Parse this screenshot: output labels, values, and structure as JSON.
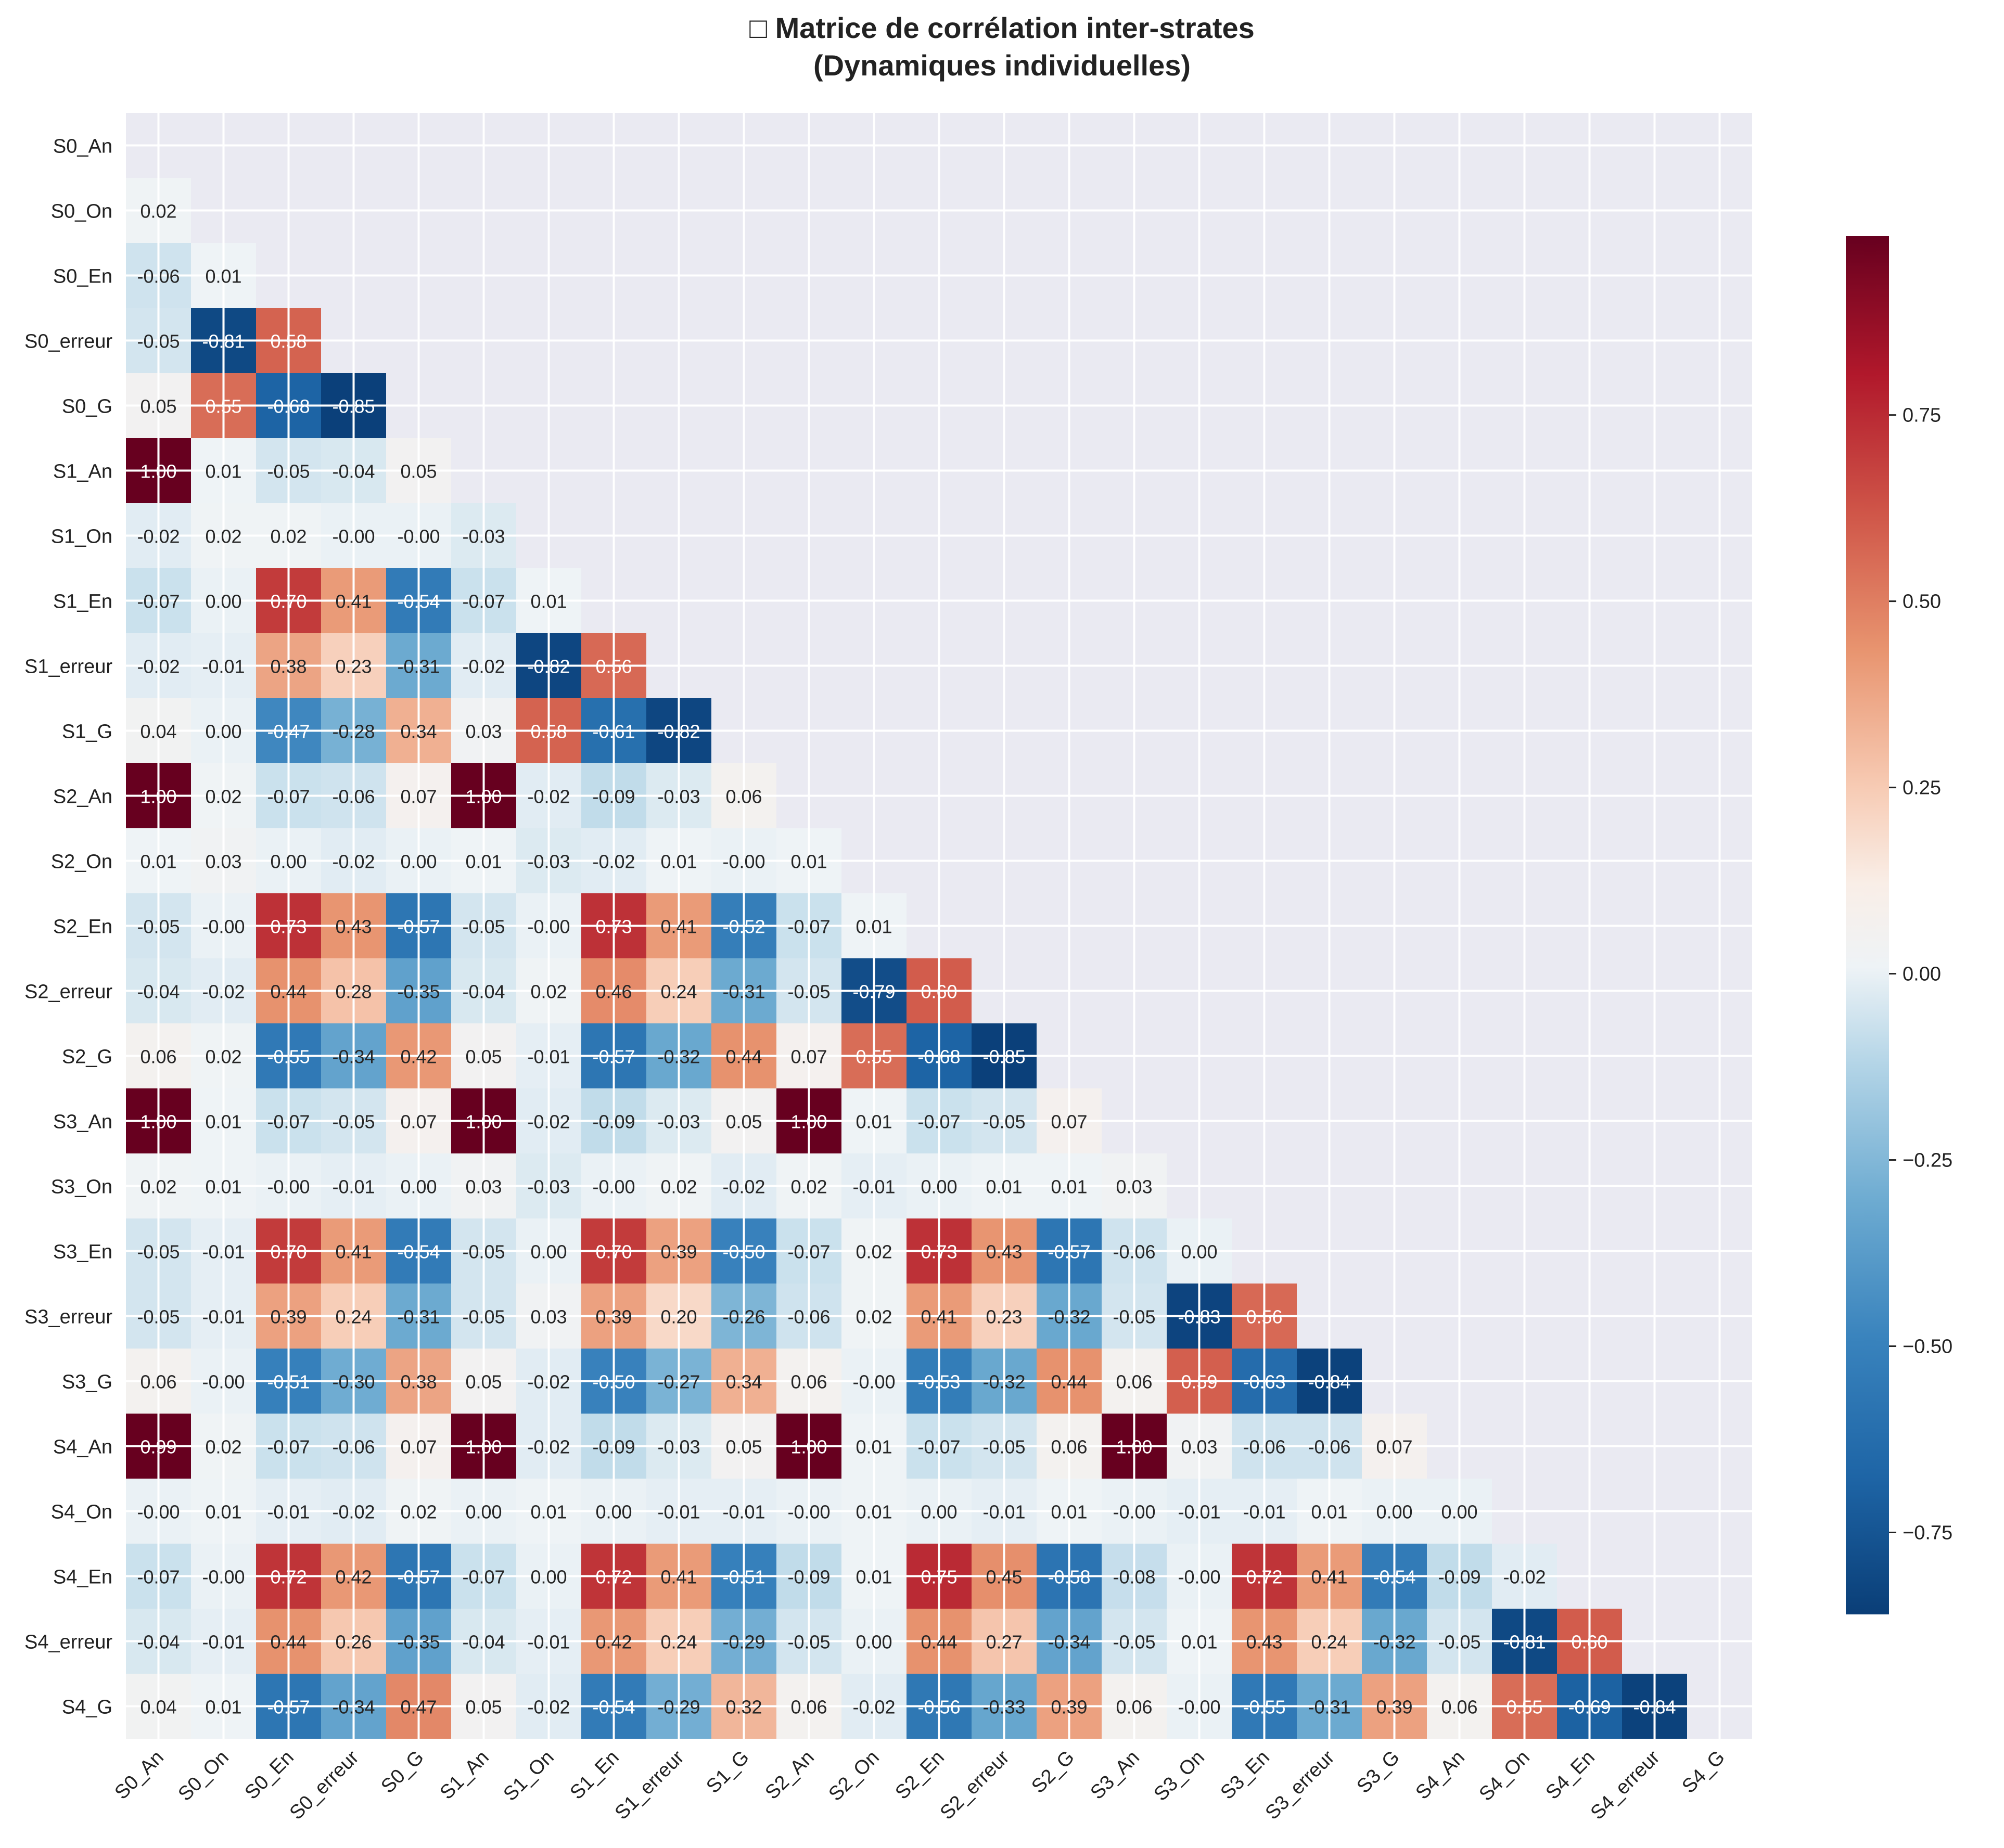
{
  "chart_data": {
    "type": "heatmap",
    "title": "Matrice de corrélation inter-strates",
    "subtitle": "(Dynamiques individuelles)",
    "title_icon": "missing-glyph-box",
    "labels": [
      "S0_An",
      "S0_On",
      "S0_En",
      "S0_erreur",
      "S0_G",
      "S1_An",
      "S1_On",
      "S1_En",
      "S1_erreur",
      "S1_G",
      "S2_An",
      "S2_On",
      "S2_En",
      "S2_erreur",
      "S2_G",
      "S3_An",
      "S3_On",
      "S3_En",
      "S3_erreur",
      "S3_G",
      "S4_An",
      "S4_On",
      "S4_En",
      "S4_erreur",
      "S4_G"
    ],
    "mask": "upper-triangle-and-diagonal",
    "rows": [
      [],
      [
        "0.02"
      ],
      [
        "-0.06",
        "0.01"
      ],
      [
        "-0.05",
        "-0.81",
        "0.58"
      ],
      [
        "0.05",
        "0.55",
        "-0.68",
        "-0.85"
      ],
      [
        "1.00",
        "0.01",
        "-0.05",
        "-0.04",
        "0.05"
      ],
      [
        "-0.02",
        "0.02",
        "0.02",
        "-0.00",
        "-0.00",
        "-0.03"
      ],
      [
        "-0.07",
        "0.00",
        "0.70",
        "0.41",
        "-0.54",
        "-0.07",
        "0.01"
      ],
      [
        "-0.02",
        "-0.01",
        "0.38",
        "0.23",
        "-0.31",
        "-0.02",
        "-0.82",
        "0.56"
      ],
      [
        "0.04",
        "0.00",
        "-0.47",
        "-0.28",
        "0.34",
        "0.03",
        "0.58",
        "-0.61",
        "-0.82"
      ],
      [
        "1.00",
        "0.02",
        "-0.07",
        "-0.06",
        "0.07",
        "1.00",
        "-0.02",
        "-0.09",
        "-0.03",
        "0.06"
      ],
      [
        "0.01",
        "0.03",
        "0.00",
        "-0.02",
        "0.00",
        "0.01",
        "-0.03",
        "-0.02",
        "0.01",
        "-0.00",
        "0.01"
      ],
      [
        "-0.05",
        "-0.00",
        "0.73",
        "0.43",
        "-0.57",
        "-0.05",
        "-0.00",
        "0.73",
        "0.41",
        "-0.52",
        "-0.07",
        "0.01"
      ],
      [
        "-0.04",
        "-0.02",
        "0.44",
        "0.28",
        "-0.35",
        "-0.04",
        "0.02",
        "0.46",
        "0.24",
        "-0.31",
        "-0.05",
        "-0.79",
        "0.60"
      ],
      [
        "0.06",
        "0.02",
        "-0.55",
        "-0.34",
        "0.42",
        "0.05",
        "-0.01",
        "-0.57",
        "-0.32",
        "0.44",
        "0.07",
        "0.55",
        "-0.68",
        "-0.85"
      ],
      [
        "1.00",
        "0.01",
        "-0.07",
        "-0.05",
        "0.07",
        "1.00",
        "-0.02",
        "-0.09",
        "-0.03",
        "0.05",
        "1.00",
        "0.01",
        "-0.07",
        "-0.05",
        "0.07"
      ],
      [
        "0.02",
        "0.01",
        "-0.00",
        "-0.01",
        "0.00",
        "0.03",
        "-0.03",
        "-0.00",
        "0.02",
        "-0.02",
        "0.02",
        "-0.01",
        "0.00",
        "0.01",
        "0.01",
        "0.03"
      ],
      [
        "-0.05",
        "-0.01",
        "0.70",
        "0.41",
        "-0.54",
        "-0.05",
        "0.00",
        "0.70",
        "0.39",
        "-0.50",
        "-0.07",
        "0.02",
        "0.73",
        "0.43",
        "-0.57",
        "-0.06",
        "0.00"
      ],
      [
        "-0.05",
        "-0.01",
        "0.39",
        "0.24",
        "-0.31",
        "-0.05",
        "0.03",
        "0.39",
        "0.20",
        "-0.26",
        "-0.06",
        "0.02",
        "0.41",
        "0.23",
        "-0.32",
        "-0.05",
        "-0.83",
        "0.56"
      ],
      [
        "0.06",
        "-0.00",
        "-0.51",
        "-0.30",
        "0.38",
        "0.05",
        "-0.02",
        "-0.50",
        "-0.27",
        "0.34",
        "0.06",
        "-0.00",
        "-0.53",
        "-0.32",
        "0.44",
        "0.06",
        "0.59",
        "-0.63",
        "-0.84"
      ],
      [
        "0.99",
        "0.02",
        "-0.07",
        "-0.06",
        "0.07",
        "1.00",
        "-0.02",
        "-0.09",
        "-0.03",
        "0.05",
        "1.00",
        "0.01",
        "-0.07",
        "-0.05",
        "0.06",
        "1.00",
        "0.03",
        "-0.06",
        "-0.06",
        "0.07"
      ],
      [
        "-0.00",
        "0.01",
        "-0.01",
        "-0.02",
        "0.02",
        "0.00",
        "0.01",
        "0.00",
        "-0.01",
        "-0.01",
        "-0.00",
        "0.01",
        "0.00",
        "-0.01",
        "0.01",
        "-0.00",
        "-0.01",
        "-0.01",
        "0.01",
        "0.00",
        "0.00"
      ],
      [
        "-0.07",
        "-0.00",
        "0.72",
        "0.42",
        "-0.57",
        "-0.07",
        "0.00",
        "0.72",
        "0.41",
        "-0.51",
        "-0.09",
        "0.01",
        "0.75",
        "0.45",
        "-0.58",
        "-0.08",
        "-0.00",
        "0.72",
        "0.41",
        "-0.54",
        "-0.09",
        "-0.02"
      ],
      [
        "-0.04",
        "-0.01",
        "0.44",
        "0.26",
        "-0.35",
        "-0.04",
        "-0.01",
        "0.42",
        "0.24",
        "-0.29",
        "-0.05",
        "0.00",
        "0.44",
        "0.27",
        "-0.34",
        "-0.05",
        "0.01",
        "0.43",
        "0.24",
        "-0.32",
        "-0.05",
        "-0.81",
        "0.60"
      ],
      [
        "0.04",
        "0.01",
        "-0.57",
        "-0.34",
        "0.47",
        "0.05",
        "-0.02",
        "-0.54",
        "-0.29",
        "0.32",
        "0.06",
        "-0.02",
        "-0.56",
        "-0.33",
        "0.39",
        "0.06",
        "-0.00",
        "-0.55",
        "-0.31",
        "0.39",
        "0.06",
        "0.55",
        "-0.69",
        "-0.84"
      ]
    ],
    "colormap": "RdBu_r",
    "colorbar": {
      "vmin": -0.86,
      "vmax": 0.99,
      "ticks": [
        "0.75",
        "0.50",
        "0.25",
        "0.00",
        "−0.25",
        "−0.50",
        "−0.75"
      ]
    },
    "grid": true,
    "grid_color": "#ffffff",
    "background_color": "#eaeaf2"
  }
}
